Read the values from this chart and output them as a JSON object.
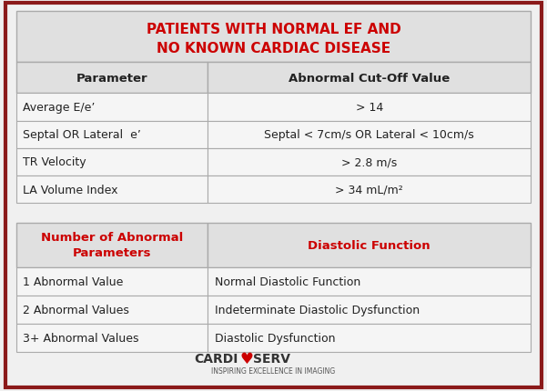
{
  "bg_color": "#f0f0f0",
  "border_color": "#8b1a1a",
  "title1": "PATIENTS WITH NORMAL EF AND",
  "title2": "NO KNOWN CARDIAC DISEASE",
  "title_color": "#cc0000",
  "header1_col1": "Parameter",
  "header1_col2": "Abnormal Cut-Off Value",
  "table1_rows": [
    [
      "Average E/e’",
      "> 14"
    ],
    [
      "Septal OR Lateral  e’",
      "Septal < 7cm/s OR Lateral < 10cm/s"
    ],
    [
      "TR Velocity",
      "> 2.8 m/s"
    ],
    [
      "LA Volume Index",
      "> 34 mL/m²"
    ]
  ],
  "header2_col1": "Number of Abnormal\nParameters",
  "header2_col2": "Diastolic Function",
  "header2_color": "#cc0000",
  "table2_rows": [
    [
      "1 Abnormal Value",
      "Normal Diastolic Function"
    ],
    [
      "2 Abnormal Values",
      "Indeterminate Diastolic Dysfunction"
    ],
    [
      "3+ Abnormal Values",
      "Diastolic Dysfunction"
    ]
  ],
  "logo_heart_color": "#cc0000",
  "logo_subtitle": "INSPIRING EXCELLENCE IN IMAGING",
  "cell_bg_header": "#e0e0e0",
  "cell_bg_normal": "#f5f5f5",
  "line_color": "#aaaaaa",
  "text_color": "#222222"
}
